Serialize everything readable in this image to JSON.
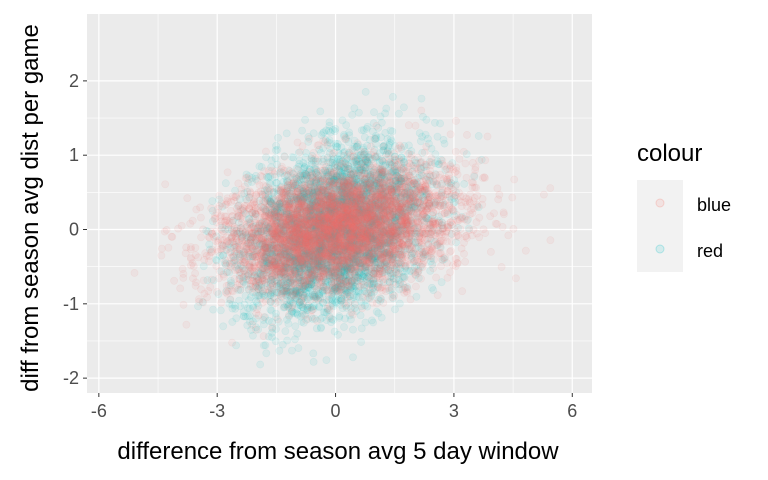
{
  "chart_data": {
    "type": "scatter",
    "xlabel": "difference from season avg 5 day window",
    "ylabel": "diff from season avg dist per game",
    "xlim": [
      -6.3,
      6.5
    ],
    "ylim": [
      -2.2,
      2.9
    ],
    "x_ticks": [
      -6,
      -3,
      0,
      3,
      6
    ],
    "x_tick_labels": [
      "-6",
      "-3",
      "0",
      "3",
      "6"
    ],
    "y_ticks": [
      -2,
      -1,
      0,
      1,
      2
    ],
    "y_tick_labels": [
      "-2",
      "-1",
      "0",
      "1",
      "2"
    ],
    "grid": true,
    "legend": {
      "title": "colour",
      "position": "right",
      "entries": [
        {
          "label": "blue",
          "color": "#F8766D"
        },
        {
          "label": "red",
          "color": "#00BFC4"
        }
      ]
    },
    "series": [
      {
        "legend_label": "blue",
        "color": "#F8766D",
        "point_alpha": 0.08,
        "distribution": {
          "x_mean": 0.0,
          "x_sd": 1.45,
          "y_mean": 0.0,
          "y_sd": 0.42,
          "correlation": 0.3,
          "x_range": [
            -6.0,
            6.2
          ],
          "y_range": [
            -1.9,
            2.2
          ]
        }
      },
      {
        "legend_label": "red",
        "color": "#00BFC4",
        "point_alpha": 0.08,
        "distribution": {
          "x_mean": 0.0,
          "x_sd": 1.15,
          "y_mean": 0.0,
          "y_sd": 0.55,
          "correlation": 0.3,
          "x_range": [
            -3.5,
            3.8
          ],
          "y_range": [
            -2.1,
            2.1
          ]
        }
      }
    ]
  },
  "colors": {
    "panel_background": "#EBEBEB",
    "grid_major": "#FFFFFF",
    "legend_key_background": "#F2F2F2"
  }
}
